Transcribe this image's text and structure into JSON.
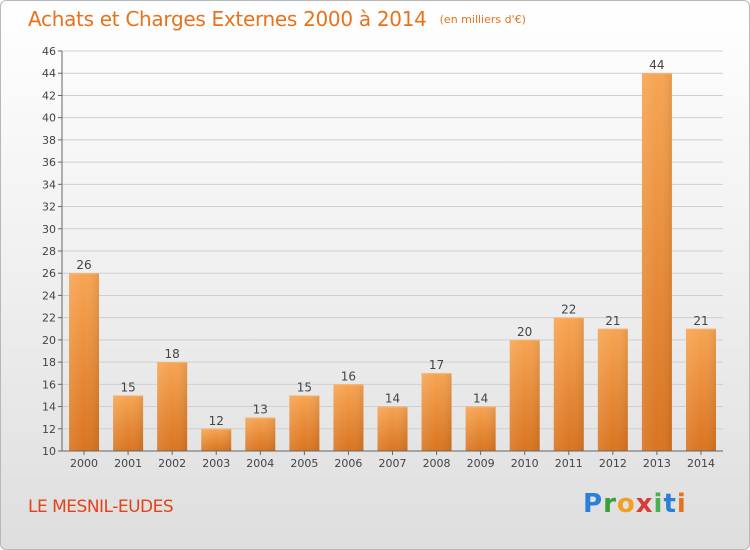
{
  "title": "Achats et Charges Externes 2000 à 2014",
  "unit": "(en milliers d'€)",
  "location": "LE MESNIL-EUDES",
  "logo": {
    "letters": [
      "P",
      "r",
      "o",
      "x",
      "i",
      "t",
      "i"
    ],
    "colors": [
      "#2b7fd6",
      "#3b9d3b",
      "#f0a020",
      "#d73c3c",
      "#4caf50",
      "#2b7fd6",
      "#e8721c"
    ]
  },
  "colors": {
    "title": "#e8721c",
    "location": "#e0441c",
    "bar_light": "#f7a553",
    "bar_dark": "#d97420"
  },
  "chart_data": {
    "type": "bar",
    "title": "Achats et Charges Externes 2000 à 2014",
    "categories": [
      "2000",
      "2001",
      "2002",
      "2003",
      "2004",
      "2005",
      "2006",
      "2007",
      "2008",
      "2009",
      "2010",
      "2011",
      "2012",
      "2013",
      "2014"
    ],
    "values": [
      26,
      15,
      18,
      12,
      13,
      15,
      16,
      14,
      17,
      14,
      20,
      22,
      21,
      44,
      21
    ],
    "ylim": [
      10,
      46
    ],
    "yticks": [
      10,
      12,
      14,
      16,
      18,
      20,
      22,
      24,
      26,
      28,
      30,
      32,
      34,
      36,
      38,
      40,
      42,
      44,
      46
    ],
    "grid": true,
    "legend": "none"
  }
}
